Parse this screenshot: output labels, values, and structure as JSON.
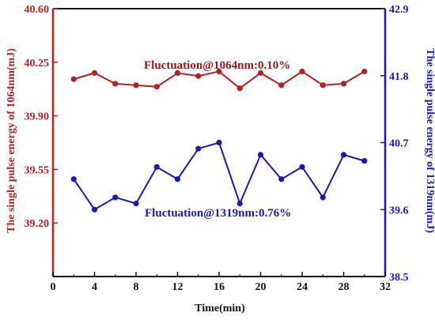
{
  "chart_data": {
    "type": "line",
    "xlabel": "Time(min)",
    "ylabel_left": "The single pulse energy of 1064nm(mJ)",
    "ylabel_right": "The single pulse energy of 1319nm(mJ)",
    "xlim": [
      0,
      32
    ],
    "xticks": [
      0,
      4,
      8,
      12,
      16,
      20,
      24,
      28,
      32
    ],
    "xtick_labels": [
      "0",
      "4",
      "8",
      "12",
      "16",
      "20",
      "24",
      "28",
      "32"
    ],
    "ylim_left": [
      38.85,
      40.6
    ],
    "yticks_left": [
      39.2,
      39.55,
      39.9,
      40.25,
      40.6
    ],
    "ytick_labels_left": [
      "39.20",
      "39.55",
      "39.90",
      "40.25",
      "40.60"
    ],
    "ylim_right": [
      38.5,
      42.9
    ],
    "yticks_right": [
      38.5,
      39.6,
      40.7,
      41.8,
      42.9
    ],
    "ytick_labels_right": [
      "38.5",
      "39.6",
      "40.7",
      "41.8",
      "42.9"
    ],
    "grid": false,
    "x": [
      2,
      4,
      6,
      8,
      10,
      12,
      14,
      16,
      18,
      20,
      22,
      24,
      26,
      28,
      30
    ],
    "series": [
      {
        "axis": "left",
        "color": "#b22222",
        "values": [
          40.14,
          40.18,
          40.11,
          40.1,
          40.09,
          40.18,
          40.16,
          40.19,
          40.08,
          40.18,
          40.1,
          40.19,
          40.1,
          40.11,
          40.19
        ]
      },
      {
        "axis": "right",
        "color": "#1a1aa6",
        "values": [
          40.1,
          39.6,
          39.8,
          39.7,
          40.3,
          40.1,
          40.6,
          40.7,
          39.7,
          40.5,
          40.1,
          40.3,
          39.8,
          40.5,
          40.4
        ]
      }
    ],
    "annotations": [
      {
        "text": "Fluctuation@1064nm:0.10%",
        "color": "#8b1a1a"
      },
      {
        "text": "Fluctuation@1319nm:0.76%",
        "color": "#1a1aa6"
      }
    ],
    "colors": {
      "left_axis": "#b22222",
      "right_axis": "#1a1aa6",
      "frame": "#111111"
    }
  }
}
